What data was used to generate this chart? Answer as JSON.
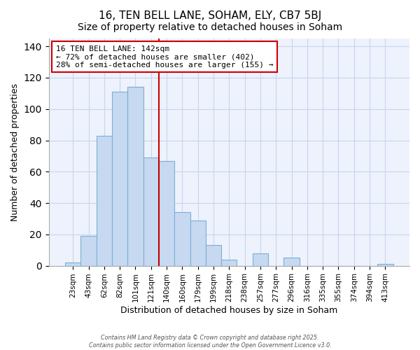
{
  "title": "16, TEN BELL LANE, SOHAM, ELY, CB7 5BJ",
  "subtitle": "Size of property relative to detached houses in Soham",
  "xlabel": "Distribution of detached houses by size in Soham",
  "ylabel": "Number of detached properties",
  "bar_labels": [
    "23sqm",
    "43sqm",
    "62sqm",
    "82sqm",
    "101sqm",
    "121sqm",
    "140sqm",
    "160sqm",
    "179sqm",
    "199sqm",
    "218sqm",
    "238sqm",
    "257sqm",
    "277sqm",
    "296sqm",
    "316sqm",
    "335sqm",
    "355sqm",
    "374sqm",
    "394sqm",
    "413sqm"
  ],
  "bar_values": [
    2,
    19,
    83,
    111,
    114,
    69,
    67,
    34,
    29,
    13,
    4,
    0,
    8,
    0,
    5,
    0,
    0,
    0,
    0,
    0,
    1
  ],
  "bar_color": "#c6d9f0",
  "bar_edge_color": "#7bafd4",
  "vline_color": "#cc0000",
  "vline_index": 6,
  "annotation_line1": "16 TEN BELL LANE: 142sqm",
  "annotation_line2": "← 72% of detached houses are smaller (402)",
  "annotation_line3": "28% of semi-detached houses are larger (155) →",
  "annotation_box_color": "#cc0000",
  "annotation_box_facecolor": "white",
  "ylim": [
    0,
    145
  ],
  "yticks": [
    0,
    20,
    40,
    60,
    80,
    100,
    120,
    140
  ],
  "footer_line1": "Contains HM Land Registry data © Crown copyright and database right 2025.",
  "footer_line2": "Contains public sector information licensed under the Open Government Licence v3.0.",
  "background_color": "#ffffff",
  "plot_bg_color": "#eef2fc",
  "grid_color": "#c8d4f0",
  "title_fontsize": 11,
  "subtitle_fontsize": 10
}
